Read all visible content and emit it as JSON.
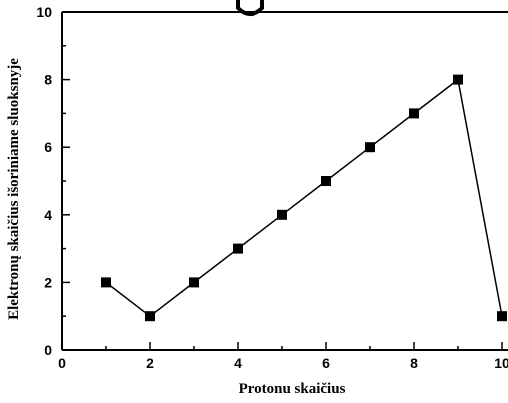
{
  "chart_data": {
    "type": "line",
    "title": "",
    "xlabel": "Protonu skaičius",
    "ylabel": "Elektronų skaičius išoriniame sluoksnyje",
    "xlim": [
      0,
      10
    ],
    "ylim": [
      0,
      10
    ],
    "x_ticks": [
      "0",
      "2",
      "4",
      "6",
      "8",
      "10"
    ],
    "y_ticks": [
      "0",
      "2",
      "4",
      "6",
      "8",
      "10"
    ],
    "grid": false,
    "marker": "square",
    "series": [
      {
        "x": [
          1,
          2,
          3,
          4,
          5,
          6,
          7,
          8,
          9,
          10
        ],
        "values": [
          2,
          1,
          2,
          3,
          4,
          5,
          6,
          7,
          8,
          1
        ],
        "color": "#000000"
      }
    ]
  }
}
